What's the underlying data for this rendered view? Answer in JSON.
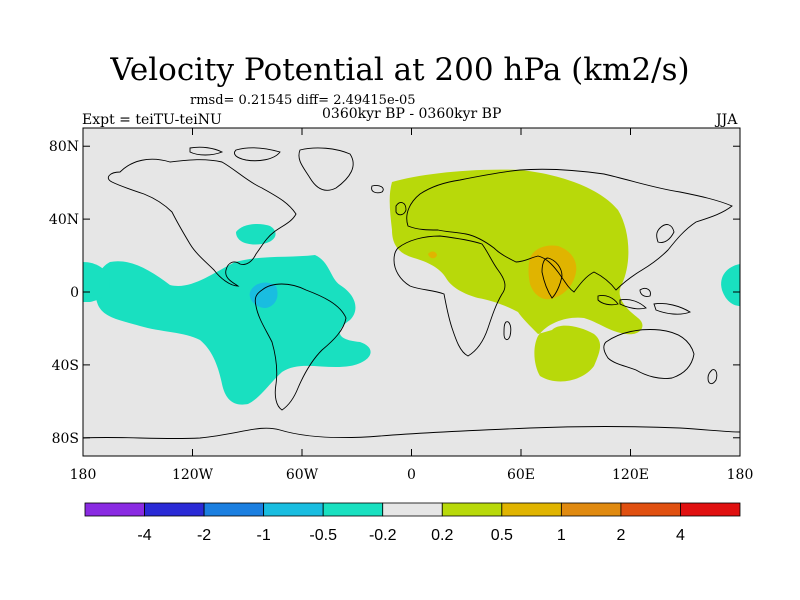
{
  "title": "Velocity Potential at 200 hPa (km2/s)",
  "stats_line": "rmsd= 0.21545 diff= 2.49415e-05",
  "experiment_label": "Expt = teiTU-teiNU",
  "period_label": "0360kyr BP - 0360kyr BP",
  "season_label": "JJA",
  "map": {
    "projection": "cylindrical equidistant",
    "lon_range": [
      -180,
      180
    ],
    "lat_range": [
      -90,
      90
    ],
    "y_ticks": [
      {
        "value": 80,
        "label": "80N"
      },
      {
        "value": 40,
        "label": "40N"
      },
      {
        "value": 0,
        "label": "0"
      },
      {
        "value": -40,
        "label": "40S"
      },
      {
        "value": -80,
        "label": "80S"
      }
    ],
    "x_ticks": [
      {
        "value": -180,
        "label": "180"
      },
      {
        "value": -120,
        "label": "120W"
      },
      {
        "value": -60,
        "label": "60W"
      },
      {
        "value": 0,
        "label": "0"
      },
      {
        "value": 60,
        "label": "60E"
      },
      {
        "value": 120,
        "label": "120E"
      },
      {
        "value": 180,
        "label": "180"
      }
    ],
    "background_color": "#e6e6e6",
    "coastline_color": "#000000"
  },
  "colorbar": {
    "labels": [
      "-4",
      "-2",
      "-1",
      "-0.5",
      "-0.2",
      "0.2",
      "0.5",
      "1",
      "2",
      "4"
    ],
    "colors": [
      "#8a2be2",
      "#2a2ad6",
      "#1b7fe0",
      "#19bde0",
      "#19e0c0",
      "#e6e6e6",
      "#b8d90a",
      "#e0b400",
      "#e08a10",
      "#e05010",
      "#e01010"
    ]
  },
  "regions": [
    {
      "name": "east-hemisphere-positive",
      "level": "0.2 to 0.5",
      "color": "#b8d90a"
    },
    {
      "name": "south-asia-positive",
      "level": "0.5 to 1",
      "color": "#e0b400"
    },
    {
      "name": "pacific-atlantic-negative",
      "level": "-0.5 to -0.2",
      "color": "#19e0c0"
    },
    {
      "name": "central-america-negative",
      "level": "-1 to -0.5",
      "color": "#19bde0"
    }
  ]
}
